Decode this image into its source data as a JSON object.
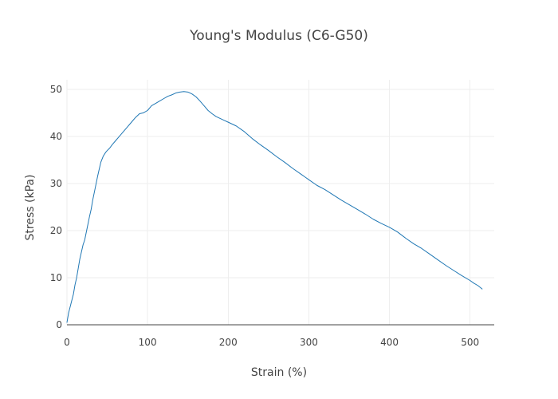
{
  "chart_data": {
    "type": "line",
    "title": "Young's Modulus (C6-G50)",
    "xlabel": "Strain (%)",
    "ylabel": "Stress (kPa)",
    "xlim": [
      0,
      530
    ],
    "ylim": [
      0,
      52
    ],
    "x_ticks": [
      0,
      100,
      200,
      300,
      400,
      500
    ],
    "y_ticks": [
      0,
      10,
      20,
      30,
      40,
      50
    ],
    "x_tick_labels": [
      "0",
      "100",
      "200",
      "300",
      "400",
      "500"
    ],
    "y_tick_labels": [
      "0",
      "10",
      "20",
      "30",
      "40",
      "50"
    ],
    "grid": true,
    "legend": false,
    "colors": {
      "series": "#1f77b4",
      "grid": "#eeeeee",
      "axis": "#444444",
      "text": "#444444"
    },
    "series": [
      {
        "x": [
          0,
          2,
          5,
          8,
          10,
          12,
          14,
          16,
          18,
          20,
          22,
          25,
          28,
          30,
          32,
          35,
          38,
          40,
          42,
          45,
          48,
          50,
          53,
          56,
          60,
          65,
          70,
          75,
          80,
          85,
          90,
          95,
          100,
          105,
          110,
          115,
          120,
          125,
          130,
          135,
          140,
          145,
          150,
          155,
          160,
          165,
          170,
          175,
          180,
          185,
          190,
          195,
          200,
          210,
          220,
          230,
          240,
          250,
          260,
          270,
          280,
          290,
          300,
          310,
          320,
          330,
          340,
          350,
          360,
          370,
          380,
          390,
          400,
          410,
          420,
          430,
          440,
          450,
          460,
          470,
          480,
          490,
          500,
          505,
          510,
          515
        ],
        "y": [
          0.5,
          2.5,
          4.5,
          6.5,
          8.5,
          10.0,
          12.0,
          14.0,
          15.5,
          17.0,
          18.0,
          20.5,
          23.0,
          24.5,
          26.5,
          29.0,
          31.5,
          33.0,
          34.5,
          35.8,
          36.6,
          37.0,
          37.5,
          38.2,
          39.0,
          40.0,
          41.0,
          42.0,
          43.0,
          44.0,
          44.8,
          45.0,
          45.5,
          46.5,
          47.0,
          47.5,
          48.0,
          48.5,
          48.8,
          49.2,
          49.4,
          49.5,
          49.4,
          49.0,
          48.4,
          47.5,
          46.5,
          45.5,
          44.8,
          44.2,
          43.8,
          43.4,
          43.0,
          42.2,
          41.0,
          39.5,
          38.2,
          37.0,
          35.7,
          34.5,
          33.2,
          32.0,
          30.8,
          29.6,
          28.7,
          27.6,
          26.5,
          25.5,
          24.5,
          23.5,
          22.4,
          21.5,
          20.7,
          19.7,
          18.4,
          17.2,
          16.2,
          15.0,
          13.8,
          12.6,
          11.5,
          10.4,
          9.4,
          8.8,
          8.3,
          7.6
        ]
      }
    ]
  }
}
